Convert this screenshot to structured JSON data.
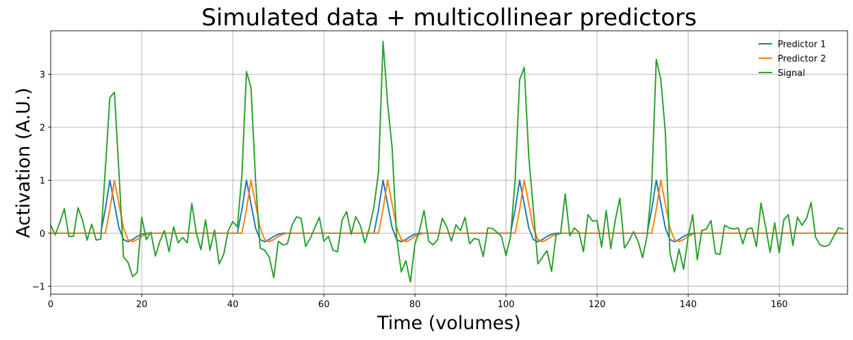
{
  "chart_data": {
    "type": "line",
    "title": "Simulated data + multicollinear predictors",
    "xlabel": "Time (volumes)",
    "ylabel": "Activation (A.U.)",
    "xlim": [
      0,
      175
    ],
    "ylim": [
      -1.15,
      3.82
    ],
    "xticks": [
      0,
      20,
      40,
      60,
      80,
      100,
      120,
      140,
      160
    ],
    "yticks": [
      -1,
      0,
      1,
      2,
      3
    ],
    "xtick_labels": [
      "0",
      "20",
      "40",
      "60",
      "80",
      "100",
      "120",
      "140",
      "160"
    ],
    "ytick_labels": [
      "−1",
      "0",
      "1",
      "2",
      "3"
    ],
    "grid": true,
    "legend_position": "top-right",
    "series": [
      {
        "name": "Predictor 1",
        "color": "#1f77b4",
        "points": [
          [
            0,
            0
          ],
          [
            11,
            0
          ],
          [
            12,
            0.45
          ],
          [
            13,
            1.0
          ],
          [
            14,
            0.55
          ],
          [
            15,
            0.1
          ],
          [
            16,
            -0.12
          ],
          [
            17,
            -0.16
          ],
          [
            18,
            -0.12
          ],
          [
            19,
            -0.06
          ],
          [
            20,
            -0.02
          ],
          [
            21,
            0
          ],
          [
            41,
            0
          ],
          [
            42,
            0.45
          ],
          [
            43,
            1.0
          ],
          [
            44,
            0.55
          ],
          [
            45,
            0.1
          ],
          [
            46,
            -0.12
          ],
          [
            47,
            -0.16
          ],
          [
            48,
            -0.12
          ],
          [
            49,
            -0.06
          ],
          [
            50,
            -0.02
          ],
          [
            51,
            0
          ],
          [
            71,
            0
          ],
          [
            72,
            0.45
          ],
          [
            73,
            1.0
          ],
          [
            74,
            0.55
          ],
          [
            75,
            0.1
          ],
          [
            76,
            -0.12
          ],
          [
            77,
            -0.16
          ],
          [
            78,
            -0.12
          ],
          [
            79,
            -0.06
          ],
          [
            80,
            -0.02
          ],
          [
            81,
            0
          ],
          [
            101,
            0
          ],
          [
            102,
            0.45
          ],
          [
            103,
            1.0
          ],
          [
            104,
            0.55
          ],
          [
            105,
            0.1
          ],
          [
            106,
            -0.12
          ],
          [
            107,
            -0.16
          ],
          [
            108,
            -0.12
          ],
          [
            109,
            -0.06
          ],
          [
            110,
            -0.02
          ],
          [
            111,
            0
          ],
          [
            131,
            0
          ],
          [
            132,
            0.45
          ],
          [
            133,
            1.0
          ],
          [
            134,
            0.55
          ],
          [
            135,
            0.1
          ],
          [
            136,
            -0.12
          ],
          [
            137,
            -0.16
          ],
          [
            138,
            -0.12
          ],
          [
            139,
            -0.06
          ],
          [
            140,
            -0.02
          ],
          [
            141,
            0
          ],
          [
            175,
            0
          ]
        ]
      },
      {
        "name": "Predictor 2",
        "color": "#ff7f0e",
        "points": [
          [
            0,
            0
          ],
          [
            12,
            0
          ],
          [
            13,
            0.45
          ],
          [
            14,
            1.0
          ],
          [
            15,
            0.55
          ],
          [
            16,
            0.1
          ],
          [
            17,
            -0.12
          ],
          [
            18,
            -0.16
          ],
          [
            19,
            -0.12
          ],
          [
            20,
            -0.06
          ],
          [
            21,
            -0.02
          ],
          [
            22,
            0
          ],
          [
            42,
            0
          ],
          [
            43,
            0.45
          ],
          [
            44,
            1.0
          ],
          [
            45,
            0.55
          ],
          [
            46,
            0.1
          ],
          [
            47,
            -0.12
          ],
          [
            48,
            -0.16
          ],
          [
            49,
            -0.12
          ],
          [
            50,
            -0.06
          ],
          [
            51,
            -0.02
          ],
          [
            52,
            0
          ],
          [
            72,
            0
          ],
          [
            73,
            0.45
          ],
          [
            74,
            1.0
          ],
          [
            75,
            0.55
          ],
          [
            76,
            0.1
          ],
          [
            77,
            -0.12
          ],
          [
            78,
            -0.16
          ],
          [
            79,
            -0.12
          ],
          [
            80,
            -0.06
          ],
          [
            81,
            -0.02
          ],
          [
            82,
            0
          ],
          [
            102,
            0
          ],
          [
            103,
            0.45
          ],
          [
            104,
            1.0
          ],
          [
            105,
            0.55
          ],
          [
            106,
            0.1
          ],
          [
            107,
            -0.12
          ],
          [
            108,
            -0.16
          ],
          [
            109,
            -0.12
          ],
          [
            110,
            -0.06
          ],
          [
            111,
            -0.02
          ],
          [
            112,
            0
          ],
          [
            132,
            0
          ],
          [
            133,
            0.45
          ],
          [
            134,
            1.0
          ],
          [
            135,
            0.55
          ],
          [
            136,
            0.1
          ],
          [
            137,
            -0.12
          ],
          [
            138,
            -0.16
          ],
          [
            139,
            -0.12
          ],
          [
            140,
            -0.06
          ],
          [
            141,
            -0.02
          ],
          [
            142,
            0
          ],
          [
            175,
            0
          ]
        ]
      },
      {
        "name": "Signal",
        "color": "#2ca02c",
        "points": [
          [
            0,
            0.15
          ],
          [
            1,
            -0.03
          ],
          [
            2,
            0.2
          ],
          [
            3,
            0.46
          ],
          [
            4,
            -0.06
          ],
          [
            5,
            -0.06
          ],
          [
            6,
            0.48
          ],
          [
            7,
            0.25
          ],
          [
            8,
            -0.13
          ],
          [
            9,
            0.17
          ],
          [
            10,
            -0.13
          ],
          [
            11,
            -0.11
          ],
          [
            12,
            1.2
          ],
          [
            13,
            2.56
          ],
          [
            14,
            2.66
          ],
          [
            15,
            1.15
          ],
          [
            16,
            -0.45
          ],
          [
            17,
            -0.55
          ],
          [
            18,
            -0.82
          ],
          [
            19,
            -0.74
          ],
          [
            20,
            0.3
          ],
          [
            21,
            -0.12
          ],
          [
            22,
            0.02
          ],
          [
            23,
            -0.43
          ],
          [
            24,
            -0.15
          ],
          [
            25,
            0.05
          ],
          [
            26,
            -0.35
          ],
          [
            27,
            0.12
          ],
          [
            28,
            -0.18
          ],
          [
            29,
            -0.08
          ],
          [
            30,
            -0.18
          ],
          [
            31,
            0.56
          ],
          [
            32,
            0.0
          ],
          [
            33,
            -0.31
          ],
          [
            34,
            0.25
          ],
          [
            35,
            -0.32
          ],
          [
            36,
            0.06
          ],
          [
            37,
            -0.58
          ],
          [
            38,
            -0.4
          ],
          [
            39,
            0.05
          ],
          [
            40,
            0.22
          ],
          [
            41,
            0.12
          ],
          [
            42,
            1.1
          ],
          [
            43,
            3.05
          ],
          [
            44,
            2.75
          ],
          [
            45,
            1.0
          ],
          [
            46,
            -0.28
          ],
          [
            47,
            -0.32
          ],
          [
            48,
            -0.45
          ],
          [
            49,
            -0.84
          ],
          [
            50,
            -0.15
          ],
          [
            51,
            -0.22
          ],
          [
            52,
            -0.2
          ],
          [
            53,
            0.15
          ],
          [
            54,
            0.31
          ],
          [
            55,
            0.28
          ],
          [
            56,
            -0.25
          ],
          [
            57,
            -0.1
          ],
          [
            58,
            0.1
          ],
          [
            59,
            0.3
          ],
          [
            60,
            -0.15
          ],
          [
            61,
            -0.06
          ],
          [
            62,
            -0.32
          ],
          [
            63,
            -0.35
          ],
          [
            64,
            0.25
          ],
          [
            65,
            0.41
          ],
          [
            66,
            -0.02
          ],
          [
            67,
            0.31
          ],
          [
            68,
            0.15
          ],
          [
            69,
            -0.18
          ],
          [
            70,
            0.1
          ],
          [
            71,
            0.5
          ],
          [
            72,
            1.15
          ],
          [
            73,
            3.62
          ],
          [
            74,
            2.45
          ],
          [
            75,
            1.6
          ],
          [
            76,
            -0.1
          ],
          [
            77,
            -0.73
          ],
          [
            78,
            -0.52
          ],
          [
            79,
            -0.92
          ],
          [
            80,
            -0.2
          ],
          [
            81,
            0.05
          ],
          [
            82,
            0.43
          ],
          [
            83,
            -0.15
          ],
          [
            84,
            -0.22
          ],
          [
            85,
            -0.12
          ],
          [
            86,
            0.28
          ],
          [
            87,
            0.12
          ],
          [
            88,
            -0.15
          ],
          [
            89,
            0.16
          ],
          [
            90,
            0.05
          ],
          [
            91,
            0.3
          ],
          [
            92,
            -0.2
          ],
          [
            93,
            -0.1
          ],
          [
            94,
            -0.12
          ],
          [
            95,
            -0.44
          ],
          [
            96,
            0.1
          ],
          [
            97,
            0.09
          ],
          [
            98,
            0.02
          ],
          [
            99,
            -0.06
          ],
          [
            100,
            -0.42
          ],
          [
            101,
            -0.06
          ],
          [
            102,
            1.0
          ],
          [
            103,
            2.9
          ],
          [
            104,
            3.13
          ],
          [
            105,
            1.45
          ],
          [
            106,
            0.45
          ],
          [
            107,
            -0.58
          ],
          [
            108,
            -0.45
          ],
          [
            109,
            -0.33
          ],
          [
            110,
            -0.72
          ],
          [
            111,
            -0.03
          ],
          [
            112,
            0.0
          ],
          [
            113,
            0.74
          ],
          [
            114,
            -0.05
          ],
          [
            115,
            0.1
          ],
          [
            116,
            0.02
          ],
          [
            117,
            -0.35
          ],
          [
            118,
            0.35
          ],
          [
            119,
            0.23
          ],
          [
            120,
            0.24
          ],
          [
            121,
            -0.26
          ],
          [
            122,
            0.43
          ],
          [
            123,
            -0.29
          ],
          [
            124,
            0.25
          ],
          [
            125,
            0.66
          ],
          [
            126,
            -0.28
          ],
          [
            127,
            -0.15
          ],
          [
            128,
            0.03
          ],
          [
            129,
            -0.15
          ],
          [
            130,
            -0.46
          ],
          [
            131,
            -0.04
          ],
          [
            132,
            0.9
          ],
          [
            133,
            3.28
          ],
          [
            134,
            2.9
          ],
          [
            135,
            1.9
          ],
          [
            136,
            -0.38
          ],
          [
            137,
            -0.73
          ],
          [
            138,
            -0.3
          ],
          [
            139,
            -0.68
          ],
          [
            140,
            -0.07
          ],
          [
            141,
            0.35
          ],
          [
            142,
            -0.5
          ],
          [
            143,
            0.05
          ],
          [
            144,
            0.08
          ],
          [
            145,
            0.24
          ],
          [
            146,
            -0.38
          ],
          [
            147,
            -0.4
          ],
          [
            148,
            0.15
          ],
          [
            149,
            0.1
          ],
          [
            150,
            0.08
          ],
          [
            151,
            0.1
          ],
          [
            152,
            -0.2
          ],
          [
            153,
            0.08
          ],
          [
            154,
            0.1
          ],
          [
            155,
            -0.25
          ],
          [
            156,
            0.57
          ],
          [
            157,
            0.12
          ],
          [
            158,
            -0.36
          ],
          [
            159,
            0.2
          ],
          [
            160,
            -0.37
          ],
          [
            161,
            0.25
          ],
          [
            162,
            0.35
          ],
          [
            163,
            -0.23
          ],
          [
            164,
            0.3
          ],
          [
            165,
            0.15
          ],
          [
            166,
            0.28
          ],
          [
            167,
            0.58
          ],
          [
            168,
            -0.08
          ],
          [
            169,
            -0.22
          ],
          [
            170,
            -0.25
          ],
          [
            171,
            -0.22
          ],
          [
            172,
            -0.05
          ],
          [
            173,
            0.1
          ],
          [
            174,
            0.08
          ]
        ]
      }
    ]
  }
}
